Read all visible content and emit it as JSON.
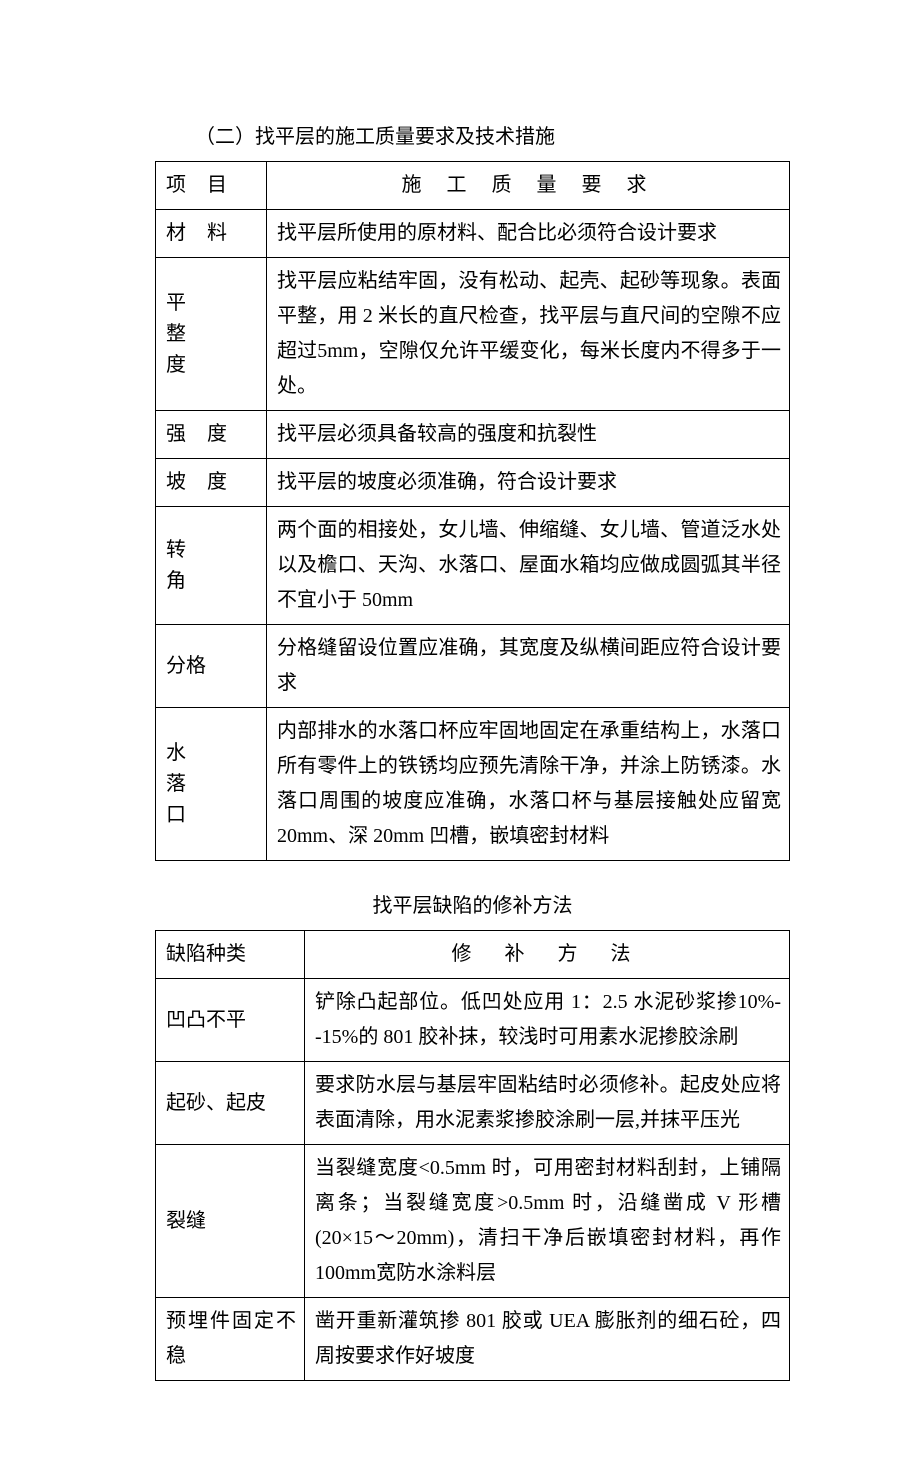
{
  "section_title": "（二）找平层的施工质量要求及技术措施",
  "table1": {
    "header_col1": "项 目",
    "header_col2": "施 工 质 量 要 求",
    "rows": [
      {
        "label": "材 料",
        "label_class": "lbl-sp",
        "req": "找平层所使用的原材料、配合比必须符合设计要求"
      },
      {
        "label_chars": [
          "平",
          "整",
          "度"
        ],
        "req": "找平层应粘结牢固，没有松动、起壳、起砂等现象。表面平整，用 2 米长的直尺检查，找平层与直尺间的空隙不应超过5mm，空隙仅允许平缓变化，每米长度内不得多于一处。"
      },
      {
        "label": "强 度",
        "label_class": "lbl-sp",
        "req": "找平层必须具备较高的强度和抗裂性"
      },
      {
        "label": "坡 度",
        "label_class": "lbl-sp",
        "req": "找平层的坡度必须准确，符合设计要求"
      },
      {
        "label_chars": [
          "转",
          "角"
        ],
        "req": "两个面的相接处，女儿墙、伸缩缝、女儿墙、管道泛水处以及檐口、天沟、水落口、屋面水箱均应做成圆弧其半径不宜小于 50mm"
      },
      {
        "label": "分格",
        "req": "分格缝留设位置应准确，其宽度及纵横间距应符合设计要求"
      },
      {
        "label_chars": [
          "水",
          "落",
          "口"
        ],
        "req": "内部排水的水落口杯应牢固地固定在承重结构上，水落口所有零件上的铁锈均应预先清除干净，并涂上防锈漆。水落口周围的坡度应准确，水落口杯与基层接触处应留宽 20mm、深 20mm 凹槽，嵌填密封材料"
      }
    ]
  },
  "mid_title": "找平层缺陷的修补方法",
  "table2": {
    "header_col1": "缺陷种类",
    "header_col2": "修 补 方 法",
    "rows": [
      {
        "label": "凹凸不平",
        "method": "铲除凸起部位。低凹处应用 1：2.5 水泥砂浆掺10%--15%的 801 胶补抹，较浅时可用素水泥掺胶涂刷"
      },
      {
        "label": "起砂、起皮",
        "method": "要求防水层与基层牢固粘结时必须修补。起皮处应将表面清除，用水泥素浆掺胶涂刷一层,并抹平压光"
      },
      {
        "label": "裂缝",
        "method": "当裂缝宽度<0.5mm 时，可用密封材料刮封，上铺隔离条；当裂缝宽度>0.5mm 时，沿缝凿成 V 形槽(20×15～20mm)，清扫干净后嵌填密封材料，再作 100mm宽防水涂料层"
      },
      {
        "label": "预埋件固定不稳",
        "method": "凿开重新灌筑掺 801 胶或 UEA 膨胀剂的细石砼，四周按要求作好坡度"
      }
    ]
  }
}
